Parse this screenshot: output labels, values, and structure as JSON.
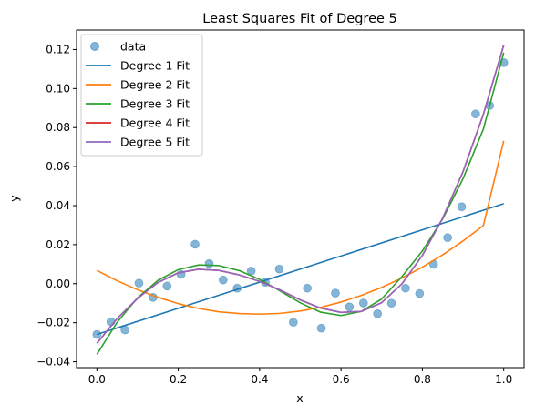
{
  "chart_data": {
    "type": "scatter",
    "title": "Least Squares Fit of Degree 5",
    "xlabel": "x",
    "ylabel": "y",
    "xlim": [
      -0.05,
      1.05
    ],
    "ylim": [
      -0.043,
      0.13
    ],
    "xticks": [
      "0.0",
      "0.2",
      "0.4",
      "0.6",
      "0.8",
      "1.0"
    ],
    "xtick_values": [
      0.0,
      0.2,
      0.4,
      0.6,
      0.8,
      1.0
    ],
    "yticks": [
      "−0.04",
      "−0.02",
      "0.00",
      "0.02",
      "0.04",
      "0.06",
      "0.08",
      "0.10",
      "0.12"
    ],
    "ytick_values": [
      -0.04,
      -0.02,
      0.0,
      0.02,
      0.04,
      0.06,
      0.08,
      0.1,
      0.12
    ],
    "grid": false,
    "legend_position": "top-left",
    "data": {
      "name": "data",
      "color": "#1f77b4",
      "x": [
        0.0,
        0.0345,
        0.069,
        0.1034,
        0.1379,
        0.1724,
        0.2069,
        0.2414,
        0.2759,
        0.3103,
        0.3448,
        0.3793,
        0.4138,
        0.4483,
        0.4828,
        0.5172,
        0.5517,
        0.5862,
        0.6207,
        0.6552,
        0.6897,
        0.7241,
        0.7586,
        0.7931,
        0.8276,
        0.8621,
        0.8966,
        0.931,
        0.9655,
        1.0
      ],
      "y": [
        -0.026,
        -0.0195,
        -0.0237,
        0.0003,
        -0.007,
        -0.0012,
        0.0048,
        0.0202,
        0.0103,
        0.0019,
        -0.0023,
        0.0065,
        0.0007,
        0.0075,
        -0.0198,
        -0.0023,
        -0.0228,
        -0.0048,
        -0.0119,
        -0.0099,
        -0.0154,
        -0.01,
        -0.0023,
        -0.005,
        0.0099,
        0.0236,
        0.0394,
        0.087,
        0.0913,
        0.1133
      ]
    },
    "series": [
      {
        "name": "Degree 1 Fit",
        "color": "#1f77b4",
        "x": [
          0.0,
          1.0
        ],
        "y": [
          -0.026,
          0.041
        ]
      },
      {
        "name": "Degree 2 Fit",
        "color": "#ff7f0e",
        "x": [
          0.0,
          0.05,
          0.1,
          0.15,
          0.2,
          0.25,
          0.3,
          0.35,
          0.4,
          0.45,
          0.5,
          0.55,
          0.6,
          0.65,
          0.7,
          0.75,
          0.8,
          0.85,
          0.9,
          0.95,
          1.0
        ],
        "y": [
          0.0068,
          0.0015,
          -0.0031,
          -0.007,
          -0.0102,
          -0.0127,
          -0.0144,
          -0.0153,
          -0.0156,
          -0.0152,
          -0.014,
          -0.0121,
          -0.0094,
          -0.006,
          -0.0019,
          0.0029,
          0.0085,
          0.0148,
          0.0219,
          0.0298,
          0.0732
        ]
      },
      {
        "name": "Degree 3 Fit",
        "color": "#2ca02c",
        "x": [
          0.0,
          0.05,
          0.1,
          0.15,
          0.2,
          0.25,
          0.3,
          0.35,
          0.4,
          0.45,
          0.5,
          0.55,
          0.6,
          0.65,
          0.7,
          0.75,
          0.8,
          0.85,
          0.9,
          0.95,
          1.0
        ],
        "y": [
          -0.0362,
          -0.0197,
          -0.0072,
          0.0017,
          0.0072,
          0.0096,
          0.0093,
          0.0067,
          0.0022,
          -0.0037,
          -0.0098,
          -0.0146,
          -0.0163,
          -0.0142,
          -0.0078,
          0.0037,
          0.0168,
          0.0332,
          0.0538,
          0.0792,
          0.1184
        ]
      },
      {
        "name": "Degree 4 Fit",
        "color": "#d62728",
        "x": [
          0.0,
          0.05,
          0.1,
          0.15,
          0.2,
          0.25,
          0.3,
          0.35,
          0.4,
          0.45,
          0.5,
          0.55,
          0.6,
          0.65,
          0.7,
          0.75,
          0.8,
          0.85,
          0.9,
          0.95,
          1.0
        ],
        "y": [
          -0.0305,
          -0.0178,
          -0.0075,
          0.0006,
          0.0056,
          0.0074,
          0.0068,
          0.0045,
          0.0012,
          -0.0032,
          -0.0083,
          -0.0125,
          -0.0147,
          -0.0142,
          -0.0097,
          0.0,
          0.0145,
          0.0336,
          0.0574,
          0.0868,
          0.1222
        ]
      },
      {
        "name": "Degree 5 Fit",
        "color": "#9467bd",
        "x": [
          0.0,
          0.05,
          0.1,
          0.15,
          0.2,
          0.25,
          0.3,
          0.35,
          0.4,
          0.45,
          0.5,
          0.55,
          0.6,
          0.65,
          0.7,
          0.75,
          0.8,
          0.85,
          0.9,
          0.95,
          1.0
        ],
        "y": [
          -0.0305,
          -0.0178,
          -0.0075,
          0.0006,
          0.0056,
          0.0074,
          0.0068,
          0.0045,
          0.0012,
          -0.0032,
          -0.0083,
          -0.0125,
          -0.0147,
          -0.0142,
          -0.0097,
          0.0,
          0.0145,
          0.0336,
          0.0574,
          0.0868,
          0.1222
        ]
      }
    ]
  }
}
